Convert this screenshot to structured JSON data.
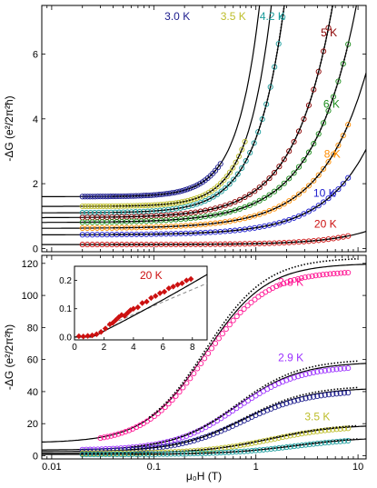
{
  "chart_data": [
    {
      "id": "top",
      "type": "scatter",
      "xscale": "log",
      "xlim": [
        0.008,
        12
      ],
      "ylim": [
        -0.1,
        7.5
      ],
      "ylabel": "-ΔG (e²/2π²ħ)",
      "y_ticks": [
        0,
        2,
        4,
        6
      ],
      "series": [
        {
          "name": "3.0 K",
          "color": "#1a1a8c",
          "base": 1.6,
          "coef": 5.0,
          "pow": 2.0,
          "xmin": 0.02,
          "xmax": 0.45
        },
        {
          "name": "3.5 K",
          "color": "#bdbd2a",
          "base": 1.3,
          "coef": 3.2,
          "pow": 1.9,
          "xmin": 0.02,
          "xmax": 0.78
        },
        {
          "name": "4.2 K",
          "color": "#1a9c9c",
          "base": 1.1,
          "coef": 2.3,
          "pow": 1.6,
          "xmin": 0.02,
          "xmax": 2.9
        },
        {
          "name": "5 K",
          "color": "#8b0000",
          "base": 0.95,
          "coef": 0.85,
          "pow": 1.18,
          "xmin": 0.02,
          "xmax": 8
        },
        {
          "name": "6 K",
          "color": "#1a8c1a",
          "base": 0.8,
          "coef": 0.62,
          "pow": 1.05,
          "xmin": 0.02,
          "xmax": 8
        },
        {
          "name": "8 K",
          "color": "#ff8c00",
          "base": 0.62,
          "coef": 0.4,
          "pow": 1.0,
          "xmin": 0.02,
          "xmax": 8
        },
        {
          "name": "10 K",
          "color": "#1a1acd",
          "base": 0.42,
          "coef": 0.22,
          "pow": 1.0,
          "xmin": 0.02,
          "xmax": 8
        },
        {
          "name": "20 K",
          "color": "#cc1010",
          "base": 0.12,
          "coef": 0.03,
          "pow": 1.05,
          "xmin": 0.02,
          "xmax": 8
        }
      ],
      "labels": [
        {
          "text": "3.0 K",
          "color": "#1a1a8c",
          "x": 0.17,
          "y": 7.05
        },
        {
          "text": "3.5 K",
          "color": "#bdbd2a",
          "x": 0.6,
          "y": 7.05
        },
        {
          "text": "4.2 K",
          "color": "#1a9c9c",
          "x": 1.45,
          "y": 7.05
        },
        {
          "text": "5 K",
          "color": "#8b0000",
          "x": 5.2,
          "y": 6.55
        },
        {
          "text": "6 K",
          "color": "#1a8c1a",
          "x": 5.5,
          "y": 4.35
        },
        {
          "text": "8 K",
          "color": "#ff8c00",
          "x": 5.6,
          "y": 2.8
        },
        {
          "text": "10 K",
          "color": "#1a1acd",
          "x": 4.7,
          "y": 1.6
        },
        {
          "text": "20 K",
          "color": "#cc1010",
          "x": 4.8,
          "y": 0.65
        }
      ]
    },
    {
      "id": "bottom",
      "type": "scatter",
      "xscale": "log",
      "xlim": [
        0.008,
        12
      ],
      "ylim": [
        -2,
        125
      ],
      "xlabel": "μ₀H (T)",
      "ylabel": "-ΔG (e²/2π²ħ)",
      "x_ticks": [
        0.01,
        0.1,
        1,
        10
      ],
      "x_tick_labels": [
        "0.01",
        "0.1",
        "1",
        "10"
      ],
      "y_ticks": [
        0,
        20,
        40,
        60,
        80,
        100,
        120
      ],
      "series": [
        {
          "name": "2.8 K",
          "color": "#ff1493",
          "base": 8,
          "amp": 112,
          "mid": 0.32,
          "w": 1.25,
          "xmin": 0.03,
          "xmax": 8
        },
        {
          "name": "2.9 K",
          "color": "#9b30ff",
          "base": 3.5,
          "amp": 55,
          "mid": 0.65,
          "w": 1.3,
          "xmin": 0.02,
          "xmax": 8
        },
        {
          "name": "3.0 K",
          "color": "#1a1a8c",
          "base": 2.5,
          "amp": 40,
          "mid": 0.75,
          "w": 1.35,
          "xmin": 0.02,
          "xmax": 8
        },
        {
          "name": "3.5 K",
          "color": "#bdbd2a",
          "base": 1.5,
          "amp": 18,
          "mid": 1.4,
          "w": 1.4,
          "xmin": 0.02,
          "xmax": 8
        },
        {
          "name": "4.2 K",
          "color": "#1a9c9c",
          "base": 0.8,
          "amp": 11,
          "mid": 2.5,
          "w": 1.45,
          "xmin": 0.02,
          "xmax": 8
        }
      ],
      "labels": [
        {
          "text": "2.8 K",
          "color": "#ff1493",
          "x": 2.2,
          "y": 106
        },
        {
          "text": "2.9 K",
          "color": "#9b30ff",
          "x": 2.2,
          "y": 59
        },
        {
          "text": "3.5 K",
          "color": "#bdbd2a",
          "x": 4.0,
          "y": 22
        }
      ]
    },
    {
      "id": "inset",
      "type": "scatter",
      "xlim": [
        0,
        9
      ],
      "ylim": [
        -0.01,
        0.25
      ],
      "x_ticks": [
        0,
        2,
        4,
        6,
        8
      ],
      "y_ticks": [
        0.0,
        0.1,
        0.2
      ],
      "y_tick_labels": [
        "0.0",
        "0.1",
        "0.2"
      ],
      "series": [
        {
          "name": "20 K",
          "color": "#cc1010",
          "marker": "diamond",
          "points": [
            [
              0.3,
              0.003
            ],
            [
              0.6,
              0.002
            ],
            [
              0.9,
              0.004
            ],
            [
              1.2,
              0.006
            ],
            [
              1.5,
              0.01
            ],
            [
              1.8,
              0.018
            ],
            [
              2.1,
              0.03
            ],
            [
              2.4,
              0.045
            ],
            [
              2.6,
              0.05
            ],
            [
              2.8,
              0.06
            ],
            [
              3.0,
              0.07
            ],
            [
              3.2,
              0.078
            ],
            [
              3.4,
              0.075
            ],
            [
              3.6,
              0.085
            ],
            [
              3.8,
              0.095
            ],
            [
              4.0,
              0.1
            ],
            [
              4.3,
              0.105
            ],
            [
              4.6,
              0.12
            ],
            [
              4.9,
              0.125
            ],
            [
              5.2,
              0.138
            ],
            [
              5.5,
              0.145
            ],
            [
              5.8,
              0.155
            ],
            [
              6.1,
              0.16
            ],
            [
              6.4,
              0.172
            ],
            [
              6.7,
              0.178
            ],
            [
              7.0,
              0.185
            ],
            [
              7.3,
              0.19
            ],
            [
              7.6,
              0.2
            ],
            [
              7.9,
              0.205
            ]
          ]
        }
      ],
      "labels": [
        {
          "text": "20 K",
          "color": "#cc1010",
          "x": 5.2,
          "y": 0.205
        }
      ]
    }
  ]
}
